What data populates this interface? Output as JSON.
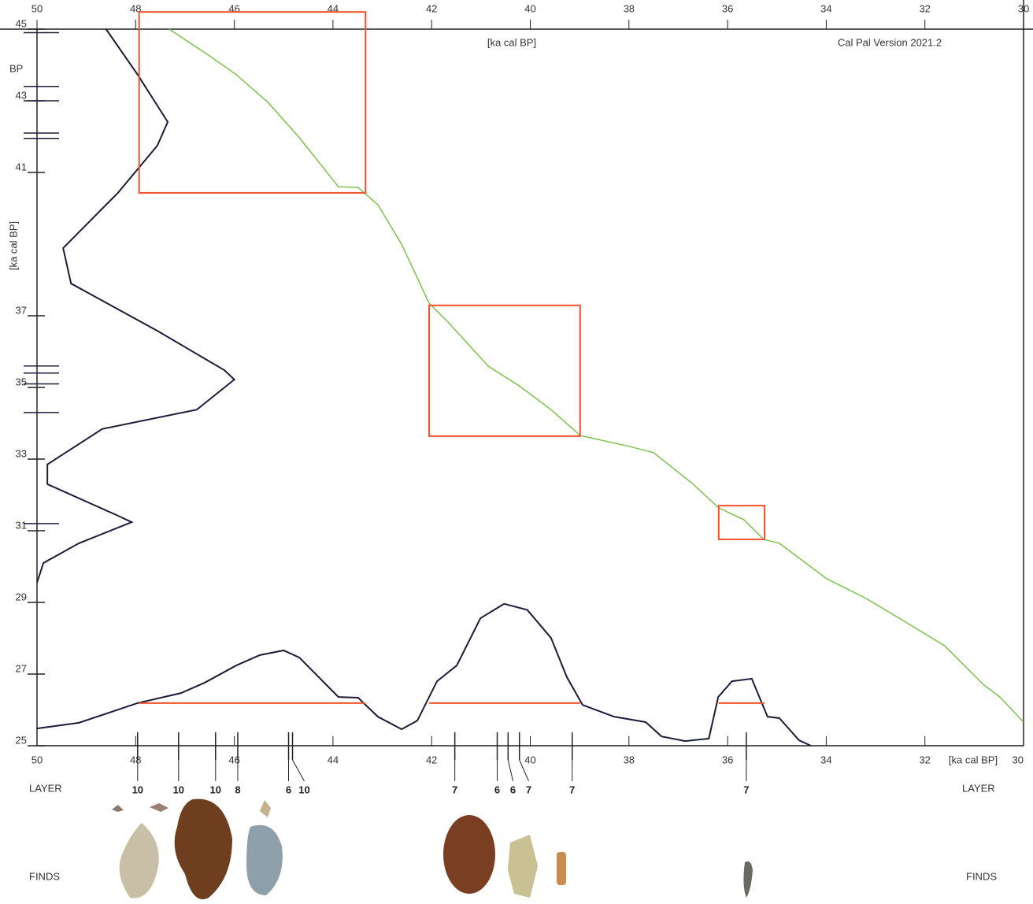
{
  "chart_data": {
    "type": "line",
    "top_axis_label": "[ka cal BP]",
    "bottom_axis_label": "[ka cal BP]",
    "version_label": "Cal Pal Version 2021.2",
    "y_label": "[ka cal BP]",
    "bp_label": "BP",
    "layer_label": "LAYER",
    "finds_label": "FINDS",
    "xlim": [
      50,
      30
    ],
    "ylim": [
      25,
      45
    ],
    "xticks": [
      50,
      48,
      46,
      44,
      42,
      40,
      38,
      36,
      34,
      32,
      30
    ],
    "bottom_xticks": [
      50,
      48,
      46,
      44,
      42,
      40,
      38,
      36,
      34,
      32
    ],
    "yticks": [
      25,
      27,
      29,
      31,
      33,
      35,
      37,
      41,
      43,
      45
    ],
    "series": [
      {
        "color": "#7cc24a",
        "x": [
          47.32,
          46.52,
          45.96,
          45.32,
          44.68,
          43.89,
          43.49,
          43.09,
          42.61,
          42.05,
          41.65,
          40.85,
          40.22,
          39.58,
          38.99,
          37.98,
          37.5,
          36.7,
          36.18,
          35.67,
          35.27,
          34.95,
          33.99,
          33.19,
          32.39,
          31.6,
          30.8,
          30.48,
          30.0
        ],
        "values": [
          45,
          44.27,
          43.73,
          42.96,
          41.97,
          40.6,
          40.58,
          40.1,
          39.0,
          37.35,
          36.8,
          35.59,
          35.04,
          34.38,
          33.66,
          33.35,
          33.18,
          32.3,
          31.64,
          31.31,
          30.76,
          30.65,
          29.66,
          29.11,
          28.45,
          27.79,
          26.69,
          26.36,
          25.66
        ]
      },
      {
        "color": "#1c1c3a",
        "x": [
          50,
          49.15,
          47.96,
          47.08,
          46.6,
          45.96,
          45.48,
          45.0,
          44.68,
          43.89,
          43.49,
          43.09,
          42.61,
          42.29,
          41.89,
          41.49,
          41.01,
          40.53,
          40.06,
          39.58,
          39.26,
          38.94,
          38.3,
          37.66,
          37.34,
          36.86,
          36.38,
          36.19,
          35.91,
          35.51,
          35.19,
          34.95,
          34.55,
          34.31
        ],
        "values": [
          25.48,
          25.64,
          26.19,
          26.47,
          26.76,
          27.24,
          27.53,
          27.66,
          27.46,
          26.36,
          26.34,
          25.81,
          25.46,
          25.7,
          26.8,
          27.24,
          28.56,
          28.96,
          28.79,
          28.01,
          26.92,
          26.14,
          25.81,
          25.66,
          25.26,
          25.13,
          25.2,
          26.36,
          26.8,
          26.87,
          25.81,
          25.77,
          25.15,
          25.0
        ]
      },
      {
        "color": "#1c1c3a",
        "x": [
          48.6,
          47.96,
          47.35,
          47.56,
          48.36,
          49.47,
          49.31,
          47.56,
          46.2,
          46.0,
          46.76,
          48.68,
          49.79,
          49.79,
          48.36,
          48.08,
          49.15,
          49.87,
          50
        ],
        "values": [
          45,
          43.73,
          42.41,
          41.75,
          40.43,
          38.89,
          37.9,
          36.58,
          35.48,
          35.22,
          34.38,
          33.84,
          32.85,
          32.3,
          31.42,
          31.24,
          30.65,
          30.1,
          29.55
        ]
      }
    ],
    "box_color": "#f0502a",
    "boxes": [
      {
        "x": [
          47.93,
          43.34
        ],
        "y": [
          45.48,
          40.43
        ]
      },
      {
        "x": [
          42.05,
          38.99
        ],
        "y": [
          37.29,
          33.64
        ]
      },
      {
        "x": [
          36.18,
          35.25
        ],
        "y": [
          31.7,
          30.76
        ]
      }
    ],
    "ranges": [
      {
        "x": [
          47.93,
          43.34
        ],
        "y": 26.19
      },
      {
        "x": [
          42.05,
          38.99
        ],
        "y": 26.19
      },
      {
        "x": [
          36.18,
          35.25
        ],
        "y": 26.19
      }
    ],
    "date_ticks": [
      44.9,
      43.4,
      43.0,
      42.1,
      41.95,
      35.6,
      35.4,
      35.1,
      34.3,
      31.2
    ],
    "layers": {
      "x": [
        47.96,
        47.13,
        46.38,
        45.93,
        44.9,
        44.82,
        41.53,
        40.67,
        40.45,
        40.22,
        39.15,
        35.62
      ],
      "labels": [
        "10",
        "10",
        "10",
        "8",
        "6",
        "10",
        "7",
        "6",
        "6",
        "7",
        "7",
        "7"
      ]
    }
  }
}
